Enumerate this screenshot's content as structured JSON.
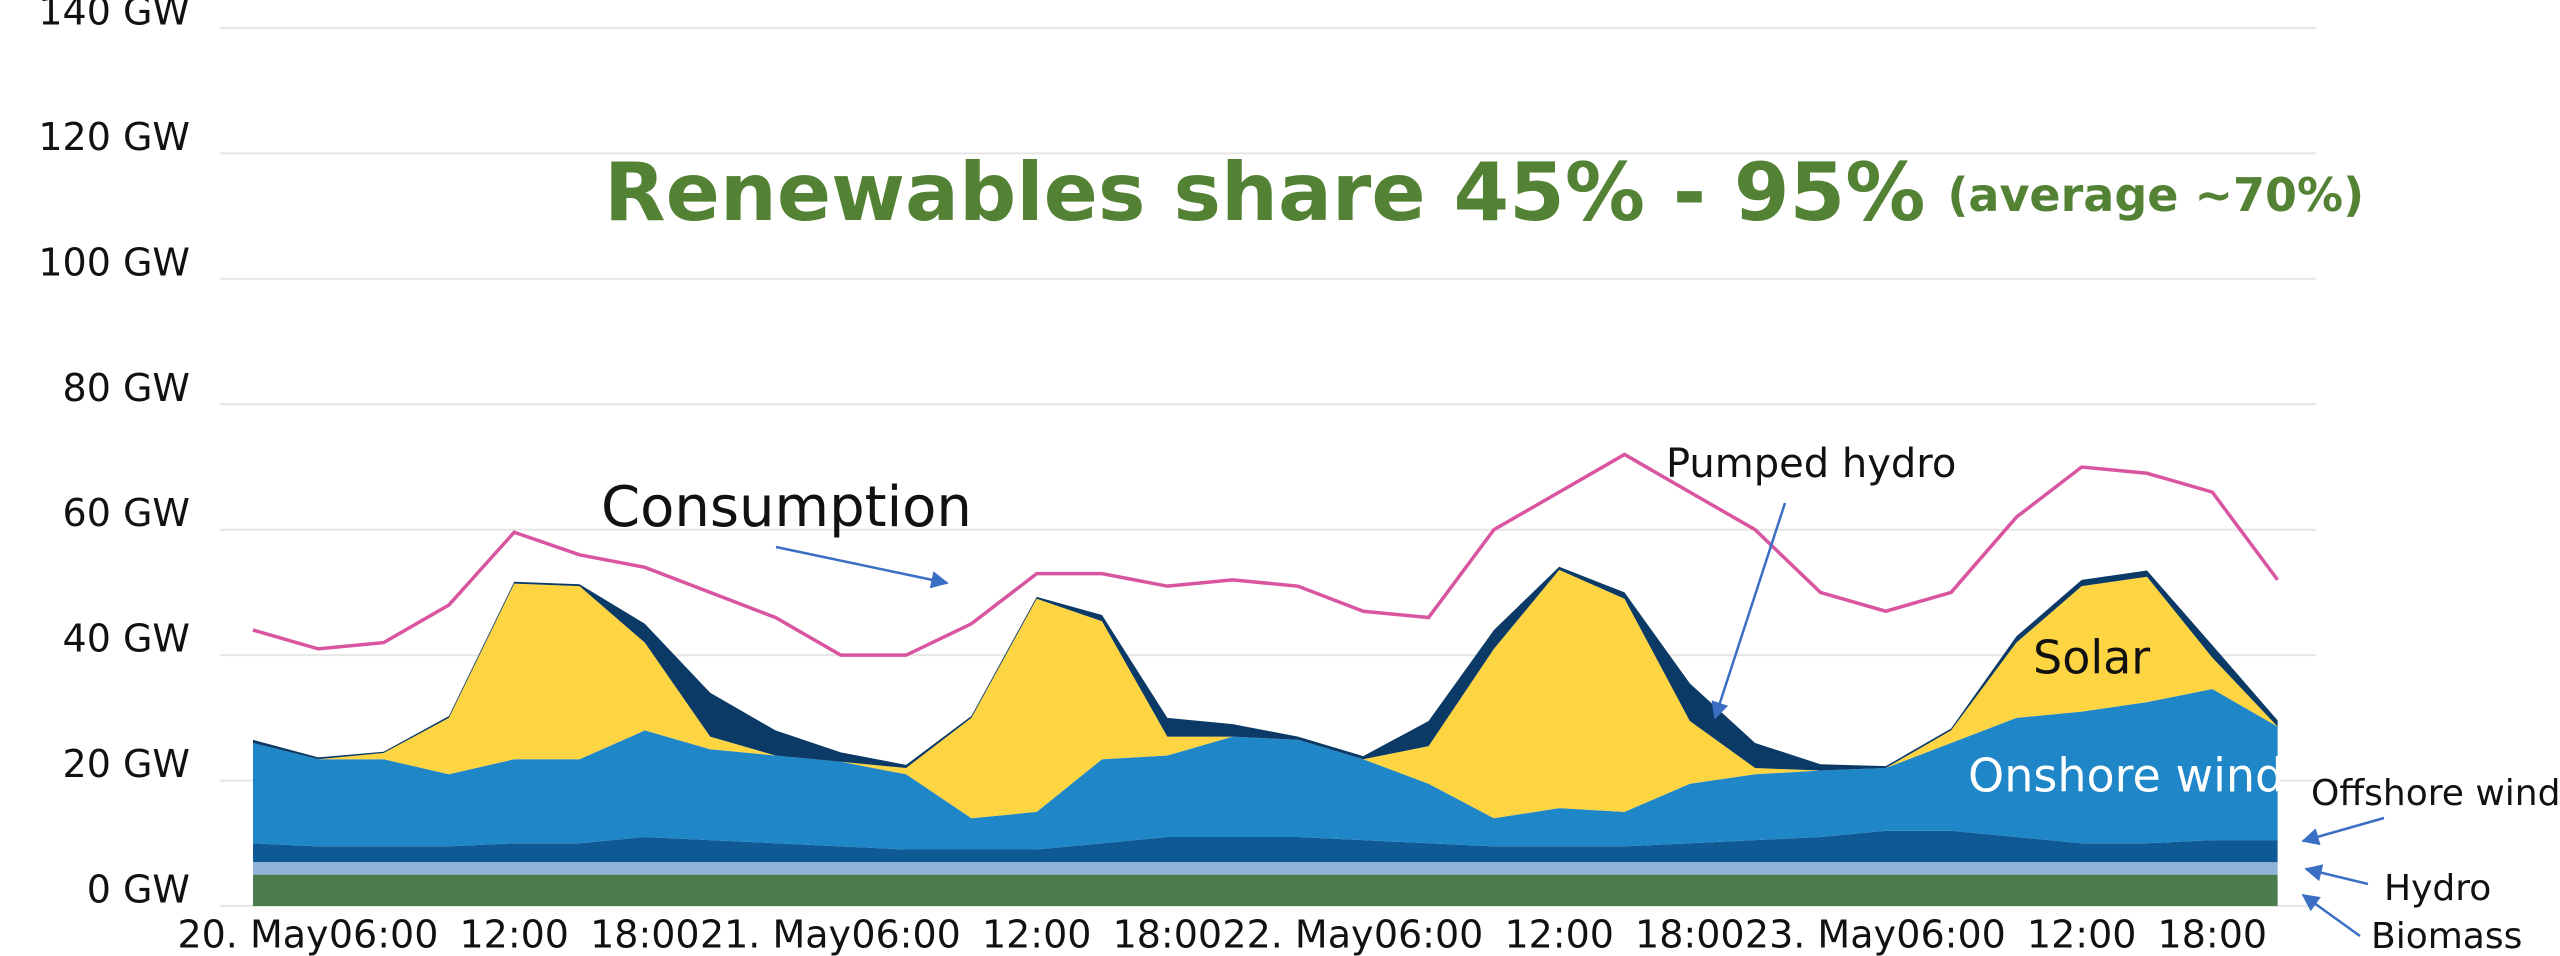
{
  "chart_data": {
    "type": "stacked_area",
    "title": "Renewables share 45% - 95%",
    "subtitle": "(average ~70%)",
    "x": [
      0,
      3,
      6,
      9,
      12,
      15,
      18,
      21,
      24,
      27,
      30,
      33,
      36,
      39,
      42,
      45,
      48,
      51,
      54,
      57,
      60,
      63,
      66,
      69,
      72,
      75,
      78,
      81,
      84,
      87,
      90,
      93
    ],
    "xticks": [
      {
        "value": 0,
        "label": "20. May"
      },
      {
        "value": 6,
        "label": "06:00"
      },
      {
        "value": 12,
        "label": "12:00"
      },
      {
        "value": 18,
        "label": "18:00"
      },
      {
        "value": 24,
        "label": "21. May"
      },
      {
        "value": 30,
        "label": "06:00"
      },
      {
        "value": 36,
        "label": "12:00"
      },
      {
        "value": 42,
        "label": "18:00"
      },
      {
        "value": 48,
        "label": "22. May"
      },
      {
        "value": 54,
        "label": "06:00"
      },
      {
        "value": 60,
        "label": "12:00"
      },
      {
        "value": 66,
        "label": "18:00"
      },
      {
        "value": 72,
        "label": "23. May"
      },
      {
        "value": 78,
        "label": "06:00"
      },
      {
        "value": 84,
        "label": "12:00"
      },
      {
        "value": 90,
        "label": "18:00"
      }
    ],
    "ylim": [
      0,
      140
    ],
    "yticks": [
      {
        "value": 0,
        "label": "0 GW"
      },
      {
        "value": 20,
        "label": "20 GW"
      },
      {
        "value": 40,
        "label": "40 GW"
      },
      {
        "value": 60,
        "label": "60 GW"
      },
      {
        "value": 80,
        "label": "80 GW"
      },
      {
        "value": 100,
        "label": "100 GW"
      },
      {
        "value": 120,
        "label": "120 GW"
      },
      {
        "value": 140,
        "label": "140 GW"
      }
    ],
    "grid": true,
    "series": [
      {
        "name": "Biomass",
        "color": "#4a7c4e",
        "values": [
          5,
          5,
          5,
          5,
          5,
          5,
          5,
          5,
          5,
          5,
          5,
          5,
          5,
          5,
          5,
          5,
          5,
          5,
          5,
          5,
          5,
          5,
          5,
          5,
          5,
          5,
          5,
          5,
          5,
          5,
          5,
          5
        ]
      },
      {
        "name": "Hydro",
        "color": "#8fb4d8",
        "values": [
          2,
          2,
          2,
          2,
          2,
          2,
          2,
          2,
          2,
          2,
          2,
          2,
          2,
          2,
          2,
          2,
          2,
          2,
          2,
          2,
          2,
          2,
          2,
          2,
          2,
          2,
          2,
          2,
          2,
          2,
          2,
          2
        ]
      },
      {
        "name": "Offshore wind",
        "color": "#0f5a94",
        "values": [
          3,
          2.5,
          2.5,
          2.5,
          3,
          3,
          4,
          3.5,
          3,
          2.5,
          2,
          2,
          2,
          3,
          4,
          4,
          4,
          3.5,
          3,
          2.5,
          2.5,
          2.5,
          3,
          3.5,
          4,
          5,
          5,
          4,
          3,
          3,
          3.5,
          3.5
        ]
      },
      {
        "name": "Onshore wind",
        "color": "#1f86c8",
        "values": [
          16,
          13.9,
          13.9,
          11.5,
          13.4,
          13.4,
          17,
          14.5,
          14,
          13.5,
          12,
          5,
          6,
          13.4,
          13,
          16,
          15.5,
          12.9,
          9.5,
          4.5,
          6.1,
          5.5,
          9.5,
          10.5,
          10.6,
          10,
          14,
          19,
          21,
          22.5,
          24.1,
          18.1
        ]
      },
      {
        "name": "Solar",
        "color": "#fdd442",
        "values": [
          0,
          0,
          1,
          9,
          28,
          27.6,
          14,
          2,
          0,
          0,
          1,
          16,
          34,
          22,
          3,
          0,
          0,
          0,
          6,
          27,
          38,
          34,
          10,
          1,
          0,
          0,
          2,
          12,
          20,
          20,
          5,
          0
        ]
      },
      {
        "name": "Pumped hydro",
        "color": "#0c3a66",
        "values": [
          0.5,
          0.3,
          0.2,
          0.3,
          0.3,
          0.3,
          3,
          7,
          4,
          1.5,
          0.5,
          0.3,
          0.3,
          1,
          3,
          2,
          0.5,
          0.5,
          4,
          3,
          0.5,
          1,
          6,
          4,
          1,
          0.3,
          0.3,
          1,
          1,
          1,
          2,
          1
        ]
      }
    ],
    "consumption": {
      "name": "Consumption",
      "color": "#d9559f",
      "values": [
        44,
        41,
        42,
        48,
        59.6,
        56,
        54,
        50,
        46,
        40,
        40,
        45,
        53,
        53,
        51,
        52,
        51,
        47,
        46,
        60,
        66,
        72,
        66,
        60,
        50,
        47,
        50,
        62,
        70,
        69,
        66,
        52
      ]
    }
  }
}
